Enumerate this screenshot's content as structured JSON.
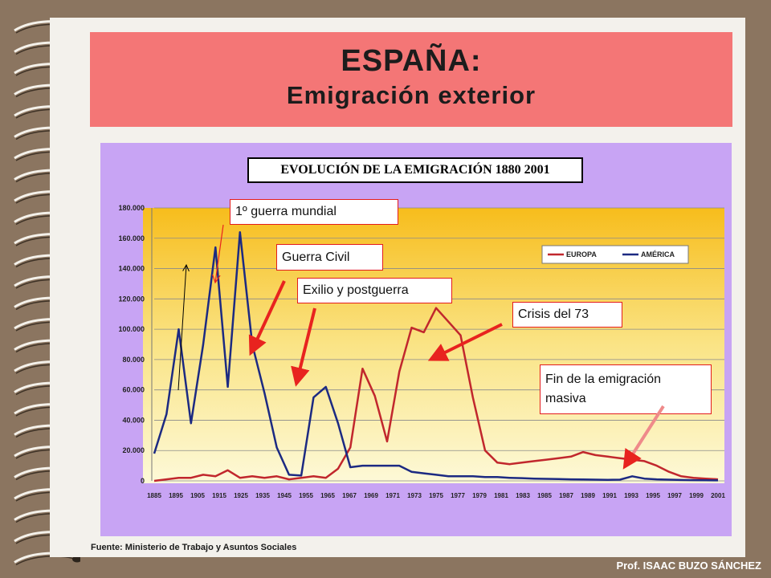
{
  "header": {
    "title": "ESPAÑA:",
    "subtitle": "Emigración exterior"
  },
  "chart_data": {
    "type": "line",
    "title": "EVOLUCIÓN DE LA EMIGRACIÓN 1880 2001",
    "ylim": [
      0,
      180000
    ],
    "yticks": [
      "0",
      "20.000",
      "40.000",
      "60.000",
      "80.000",
      "100.000",
      "120.000",
      "140.000",
      "160.000",
      "180.000"
    ],
    "xticks": [
      "1885",
      "1895",
      "1905",
      "1915",
      "1925",
      "1935",
      "1945",
      "1955",
      "1965",
      "1967",
      "1969",
      "1971",
      "1973",
      "1975",
      "1977",
      "1979",
      "1981",
      "1983",
      "1985",
      "1987",
      "1989",
      "1991",
      "1993",
      "1995",
      "1997",
      "1999",
      "2001"
    ],
    "legend_position": "top-right",
    "series": [
      {
        "name": "AMÉRICA",
        "color": "#1c2a82",
        "values": [
          18000,
          44000,
          100000,
          38000,
          90000,
          154000,
          62000,
          164000,
          90000,
          58000,
          22000,
          4000,
          3500,
          55000,
          62000,
          38000,
          9000,
          10000,
          10000,
          10000,
          10000,
          6000,
          5000,
          4000,
          3000,
          3000,
          3000,
          2500,
          2500,
          2000,
          1800,
          1500,
          1300,
          1200,
          1000,
          900,
          800,
          700,
          800,
          3000,
          1500,
          1000,
          800,
          600,
          500,
          400,
          300
        ]
      },
      {
        "name": "EUROPA",
        "color": "#c1272d",
        "values": [
          0,
          1000,
          2000,
          2000,
          4000,
          3000,
          7000,
          2000,
          3000,
          2000,
          3000,
          1000,
          2000,
          3000,
          2000,
          8000,
          22000,
          74000,
          56000,
          26000,
          72000,
          101000,
          98000,
          114000,
          105000,
          96000,
          55000,
          20000,
          12000,
          11000,
          12000,
          13000,
          14000,
          15000,
          16000,
          19000,
          17000,
          16000,
          15000,
          14000,
          13000,
          10000,
          6000,
          3000,
          2000,
          1500,
          1000
        ]
      }
    ]
  },
  "annotations": {
    "ww1": "1º guerra mundial",
    "civil_war": "Guerra Civil",
    "exile": "Exilio y postguerra",
    "crisis": "Crisis del 73",
    "end_line1": "Fin de la emigración",
    "end_line2": "masiva"
  },
  "source": "Fuente:  Ministerio de Trabajo y Asuntos  Sociales",
  "author": "Prof. ISAAC BUZO SÁNCHEZ"
}
